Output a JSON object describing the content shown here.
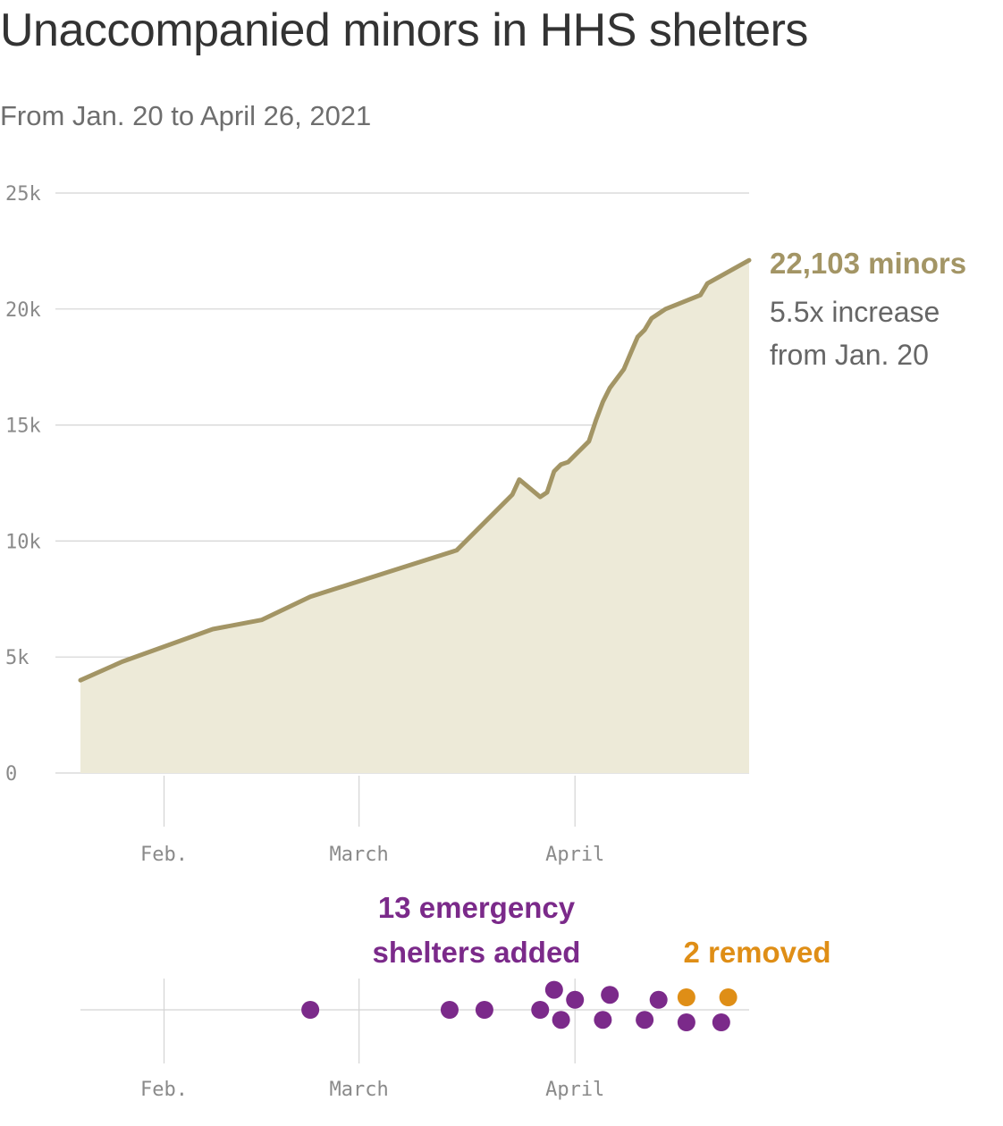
{
  "title": "Unaccompanied minors in HHS shelters",
  "subtitle": "From Jan. 20 to April 26, 2021",
  "colors": {
    "line": "#a39565",
    "area": "#edead8",
    "added": "#7b2a8a",
    "removed": "#df8e16",
    "grid": "#d4d4d4",
    "text": "#333333"
  },
  "annotations": {
    "end_value": "22,103 minors",
    "increase_line1": "5.5x increase",
    "increase_line2": "from Jan. 20",
    "added_line1": "13 emergency",
    "added_line2": "shelters added",
    "removed": "2 removed"
  },
  "chart_data": [
    {
      "type": "area",
      "xlabel": "",
      "ylabel": "",
      "x_range": [
        "2021-01-20",
        "2021-04-26"
      ],
      "ylim": [
        0,
        25000
      ],
      "y_ticks": [
        0,
        5000,
        10000,
        15000,
        20000,
        25000
      ],
      "y_tick_labels": [
        "0",
        "5k",
        "10k",
        "15k",
        "20k",
        "25k"
      ],
      "x_ticks": [
        "2021-02-01",
        "2021-03-01",
        "2021-04-01"
      ],
      "x_tick_labels": [
        "Feb.",
        "March",
        "April"
      ],
      "grid": true,
      "x": [
        "2021-01-20",
        "2021-01-26",
        "2021-02-08",
        "2021-02-15",
        "2021-02-22",
        "2021-03-15",
        "2021-03-22",
        "2021-03-23",
        "2021-03-24",
        "2021-03-27",
        "2021-03-28",
        "2021-03-29",
        "2021-03-30",
        "2021-03-31",
        "2021-04-03",
        "2021-04-04",
        "2021-04-05",
        "2021-04-06",
        "2021-04-08",
        "2021-04-09",
        "2021-04-10",
        "2021-04-11",
        "2021-04-12",
        "2021-04-13",
        "2021-04-14",
        "2021-04-19",
        "2021-04-20",
        "2021-04-26"
      ],
      "values": [
        4000,
        4800,
        6200,
        6600,
        7600,
        9600,
        11700,
        12000,
        12650,
        11900,
        12100,
        13000,
        13300,
        13400,
        14300,
        15200,
        16000,
        16600,
        17400,
        18100,
        18800,
        19100,
        19600,
        19800,
        20000,
        20600,
        21100,
        22103
      ],
      "end_label": "22,103 minors"
    },
    {
      "type": "scatter",
      "x_range": [
        "2021-01-20",
        "2021-04-26"
      ],
      "x_ticks": [
        "2021-02-01",
        "2021-03-01",
        "2021-04-01"
      ],
      "x_tick_labels": [
        "Feb.",
        "March",
        "April"
      ],
      "series": [
        {
          "name": "13 emergency shelters added",
          "x": [
            "2021-02-22",
            "2021-03-14",
            "2021-03-19",
            "2021-03-27",
            "2021-03-29",
            "2021-03-30",
            "2021-04-01",
            "2021-04-05",
            "2021-04-06",
            "2021-04-11",
            "2021-04-13",
            "2021-04-17",
            "2021-04-22"
          ],
          "y": [
            0,
            0,
            0,
            0,
            1.6,
            -0.8,
            0.8,
            -0.8,
            1.2,
            -0.8,
            0.8,
            -1.0,
            -1.0
          ]
        },
        {
          "name": "2 removed",
          "x": [
            "2021-04-17",
            "2021-04-23"
          ],
          "y": [
            1.0,
            1.0
          ]
        }
      ]
    }
  ]
}
